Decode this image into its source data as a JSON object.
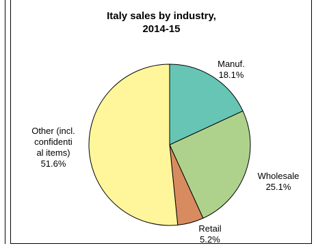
{
  "chart_data": {
    "type": "pie",
    "title_lines": [
      "Italy sales by industry,",
      "2014-15"
    ],
    "slices": [
      {
        "label_lines": [
          "Manuf.",
          "18.1%"
        ],
        "value": 18.1,
        "color": "#66c5b5"
      },
      {
        "label_lines": [
          "Wholesale",
          "25.1%"
        ],
        "value": 25.1,
        "color": "#aed28c"
      },
      {
        "label_lines": [
          "Retail",
          "5.2%"
        ],
        "value": 5.2,
        "color": "#d98b60"
      },
      {
        "label_lines": [
          "Other (incl.",
          "confidenti",
          "al items)",
          "51.6%"
        ],
        "value": 51.6,
        "color": "#fff59b"
      }
    ],
    "start_angle_deg": 0,
    "direction": "clockwise"
  }
}
